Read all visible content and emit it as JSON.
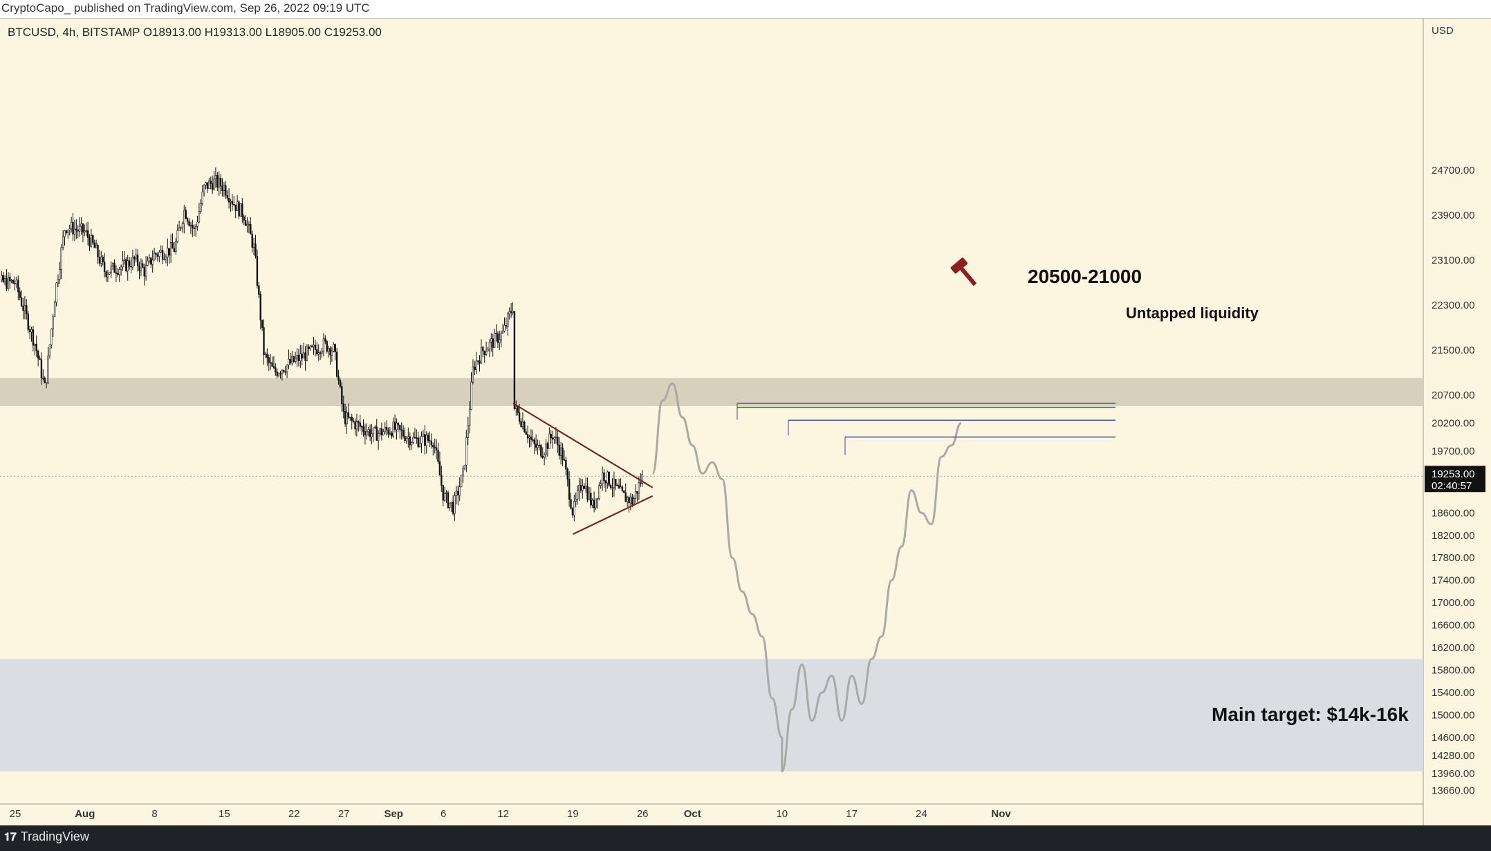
{
  "header": {
    "publisher_line": "CryptoCapo_ published on TradingView.com, Sep 26, 2022 09:19 UTC"
  },
  "footer": {
    "brand": "TradingView",
    "logo_icon": "tradingview-logo-icon"
  },
  "colors": {
    "background": "#fcf6e0",
    "resistance_zone": "#d7d0bd",
    "target_zone": "#dadde2",
    "candles": "#111111",
    "projection": "#a9a9a6",
    "triangle": "#7a2323",
    "liquidity_lines": "#3a3ea0",
    "hammer": "#8b1e1e",
    "price_badge": "#111111"
  },
  "chart_data": {
    "type": "candlestick",
    "symbol_line": "BTCUSD, 4h, BITSTAMP  O18913.00  H19313.00  L18905.00  C19253.00",
    "currency": "USD",
    "y_ticks": [
      24700,
      23900,
      23100,
      22300,
      21500,
      20700,
      20200,
      19700,
      18600,
      18200,
      17800,
      17400,
      17000,
      16600,
      16200,
      15800,
      15400,
      15000,
      14600,
      14280,
      13960,
      13660
    ],
    "x_ticks": [
      "25",
      "Aug",
      "8",
      "15",
      "22",
      "27",
      "Sep",
      "6",
      "12",
      "19",
      "26",
      "Oct",
      "10",
      "17",
      "24",
      "Nov"
    ],
    "last_price": {
      "value": "19253.00",
      "countdown": "02:40:57"
    },
    "zones": [
      {
        "name": "resistance",
        "from": 20500,
        "to": 21000,
        "label": "20500-21000"
      },
      {
        "name": "main-target",
        "from": 14000,
        "to": 16000,
        "label": "Main target: $14k-16k"
      }
    ],
    "liquidity": {
      "label": "Untapped liquidity",
      "levels": [
        20550,
        20480,
        20250,
        19950
      ]
    },
    "triangle_pattern": {
      "upper": [
        [
          "Sep 13",
          20550
        ],
        [
          "Sep 27",
          19050
        ]
      ],
      "lower": [
        [
          "Sep 19",
          18220
        ],
        [
          "Sep 27",
          18900
        ]
      ]
    },
    "price_path": [
      [
        "Jul 25",
        22700
      ],
      [
        "Jul 27",
        21600
      ],
      [
        "Jul 28",
        20800
      ],
      [
        "Jul 29",
        22500
      ],
      [
        "Jul 30",
        23700
      ],
      [
        "Aug 1",
        23600
      ],
      [
        "Aug 2",
        23300
      ],
      [
        "Aug 3",
        22900
      ],
      [
        "Aug 5",
        23000
      ],
      [
        "Aug 6",
        23100
      ],
      [
        "Aug 7",
        22900
      ],
      [
        "Aug 8",
        23200
      ],
      [
        "Aug 10",
        23300
      ],
      [
        "Aug 11",
        24000
      ],
      [
        "Aug 12",
        23600
      ],
      [
        "Aug 13",
        24400
      ],
      [
        "Aug 14",
        24500
      ],
      [
        "Aug 15",
        24400
      ],
      [
        "Aug 16",
        24100
      ],
      [
        "Aug 17",
        23900
      ],
      [
        "Aug 18",
        23300
      ],
      [
        "Aug 19",
        21400
      ],
      [
        "Aug 20",
        21100
      ],
      [
        "Aug 21",
        21200
      ],
      [
        "Aug 23",
        21400
      ],
      [
        "Aug 24",
        21500
      ],
      [
        "Aug 25",
        21600
      ],
      [
        "Aug 26",
        21500
      ],
      [
        "Aug 27",
        20300
      ],
      [
        "Aug 29",
        20100
      ],
      [
        "Aug 30",
        20000
      ],
      [
        "Sep 1",
        20100
      ],
      [
        "Sep 2",
        20000
      ],
      [
        "Sep 3",
        19900
      ],
      [
        "Sep 5",
        19900
      ],
      [
        "Sep 6",
        18900
      ],
      [
        "Sep 7",
        18700
      ],
      [
        "Sep 8",
        19300
      ],
      [
        "Sep 9",
        21200
      ],
      [
        "Sep 10",
        21500
      ],
      [
        "Sep 12",
        21800
      ],
      [
        "Sep 13",
        22300
      ],
      [
        "Sep 13",
        20500
      ],
      [
        "Sep 14",
        20200
      ],
      [
        "Sep 15",
        19800
      ],
      [
        "Sep 16",
        19700
      ],
      [
        "Sep 17",
        20000
      ],
      [
        "Sep 18",
        19600
      ],
      [
        "Sep 19",
        18600
      ],
      [
        "Sep 20",
        19200
      ],
      [
        "Sep 21",
        18700
      ],
      [
        "Sep 22",
        19300
      ],
      [
        "Sep 23",
        19100
      ],
      [
        "Sep 24",
        18900
      ],
      [
        "Sep 25",
        18800
      ],
      [
        "Sep 26",
        19253
      ]
    ],
    "projection_path": [
      [
        "Sep 27",
        19300
      ],
      [
        "Sep 28",
        20600
      ],
      [
        "Sep 29",
        20900
      ],
      [
        "Sep 30",
        20300
      ],
      [
        "Oct 1",
        19800
      ],
      [
        "Oct 2",
        19300
      ],
      [
        "Oct 3",
        19500
      ],
      [
        "Oct 4",
        19200
      ],
      [
        "Oct 5",
        17800
      ],
      [
        "Oct 6",
        17200
      ],
      [
        "Oct 7",
        16800
      ],
      [
        "Oct 8",
        16400
      ],
      [
        "Oct 9",
        15300
      ],
      [
        "Oct 10",
        14600
      ],
      [
        "Oct 10",
        14000
      ],
      [
        "Oct 11",
        15100
      ],
      [
        "Oct 12",
        15900
      ],
      [
        "Oct 13",
        14900
      ],
      [
        "Oct 14",
        15400
      ],
      [
        "Oct 15",
        15700
      ],
      [
        "Oct 16",
        14900
      ],
      [
        "Oct 17",
        15700
      ],
      [
        "Oct 18",
        15200
      ],
      [
        "Oct 19",
        16000
      ],
      [
        "Oct 20",
        16400
      ],
      [
        "Oct 21",
        17400
      ],
      [
        "Oct 22",
        18000
      ],
      [
        "Oct 23",
        19000
      ],
      [
        "Oct 24",
        18600
      ],
      [
        "Oct 25",
        18400
      ],
      [
        "Oct 26",
        19600
      ],
      [
        "Oct 27",
        19800
      ],
      [
        "Oct 28",
        20200
      ]
    ]
  }
}
